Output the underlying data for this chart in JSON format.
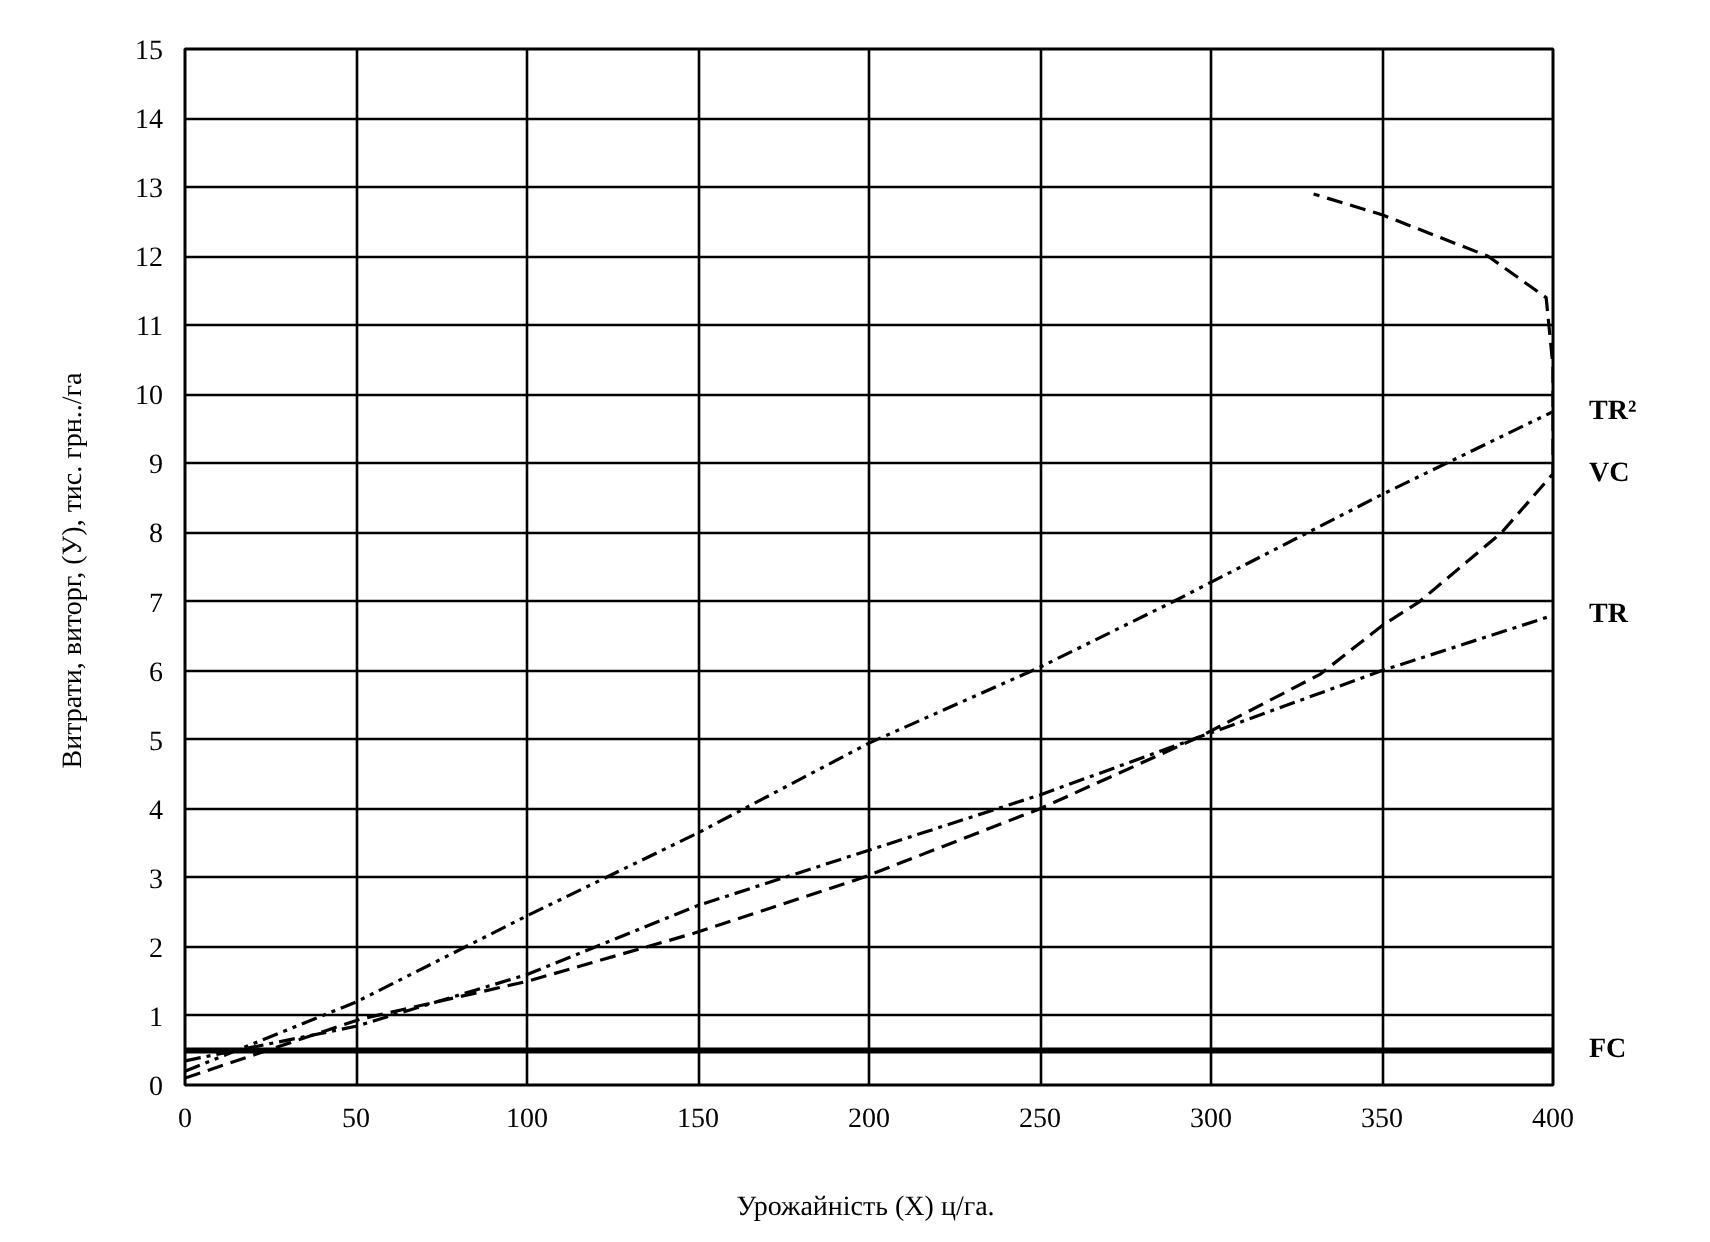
{
  "chart_data": {
    "type": "line",
    "xlabel": "Урожайність  (X) ц/га.",
    "ylabel": "Витрати,  виторг, (У), тис. грн../га",
    "xlim": [
      0,
      400
    ],
    "ylim": [
      0,
      15
    ],
    "xticks": [
      0,
      50,
      100,
      150,
      200,
      250,
      300,
      350,
      400
    ],
    "yticks": [
      0,
      1,
      2,
      3,
      4,
      5,
      6,
      7,
      8,
      9,
      10,
      11,
      12,
      13,
      14,
      15
    ],
    "grid": true,
    "marker": "none",
    "series": [
      {
        "name": "VC",
        "color": "#000000",
        "line_style": "dashed",
        "x": [
          0,
          51,
          100,
          149,
          198,
          250,
          297,
          332,
          350,
          361,
          385,
          400,
          400,
          398,
          381,
          350,
          330
        ],
        "values": [
          0.1,
          0.95,
          1.5,
          2.2,
          3.0,
          4.0,
          5.05,
          5.95,
          6.65,
          7.0,
          8.0,
          8.85,
          10.4,
          11.4,
          12.0,
          12.6,
          12.9
        ]
      },
      {
        "name": "TR²",
        "color": "#000000",
        "line_style": "dashdotdot",
        "x": [
          0,
          50,
          100,
          150,
          200,
          250,
          289,
          350,
          400
        ],
        "values": [
          0.2,
          1.2,
          2.45,
          3.65,
          4.95,
          6.05,
          7.0,
          8.55,
          9.75
        ]
      },
      {
        "name": "TR",
        "color": "#000000",
        "line_style": "dashdot",
        "x": [
          0,
          50,
          100,
          150,
          200,
          250,
          300,
          350,
          400
        ],
        "values": [
          0.35,
          0.85,
          1.6,
          2.6,
          3.4,
          4.2,
          5.1,
          6.0,
          6.8
        ]
      },
      {
        "name": "FC",
        "color": "#000000",
        "line_style": "solid",
        "x": [
          0,
          400
        ],
        "values": [
          0.5,
          0.5
        ]
      }
    ]
  }
}
